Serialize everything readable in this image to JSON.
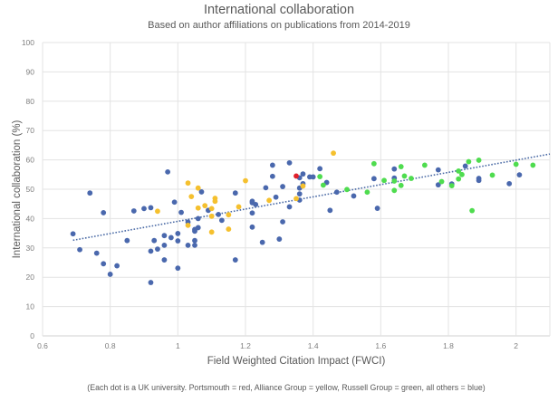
{
  "chart_data": {
    "type": "scatter",
    "title": "International collaboration",
    "subtitle": "Based on author affiliations on publications from 2014-2019",
    "xlabel": "Field Weighted Citation Impact (FWCI)",
    "ylabel": "International collaboration (%)",
    "note": "(Each dot is a UK university. Portsmouth = red, Alliance Group = yellow, Russell Group = green, all others = blue)",
    "xlim": [
      0.6,
      2.1
    ],
    "ylim": [
      0,
      100
    ],
    "x_ticks": [
      0.6,
      0.8,
      1.0,
      1.2,
      1.4,
      1.6,
      1.8,
      2.0
    ],
    "x_tick_labels": [
      "0.6",
      "0.8",
      "1",
      "1.2",
      "1.4",
      "1.6",
      "1.8",
      "2"
    ],
    "y_ticks": [
      0,
      10,
      20,
      30,
      40,
      50,
      60,
      70,
      80,
      90,
      100
    ],
    "y_tick_labels": [
      "0",
      "10",
      "20",
      "30",
      "40",
      "50",
      "60",
      "70",
      "80",
      "90",
      "100"
    ],
    "grid": true,
    "trendline": {
      "type": "linear",
      "style": "dotted",
      "x": [
        0.69,
        2.1
      ],
      "y": [
        32.6,
        62.0
      ],
      "color": "#4a6aa5"
    },
    "series": [
      {
        "name": "All others",
        "color": "#4a68ad",
        "points": [
          [
            0.69,
            34.8
          ],
          [
            0.71,
            29.4
          ],
          [
            0.74,
            48.7
          ],
          [
            0.76,
            28.2
          ],
          [
            0.78,
            42.0
          ],
          [
            0.78,
            24.6
          ],
          [
            0.8,
            21.0
          ],
          [
            0.82,
            23.9
          ],
          [
            0.85,
            32.5
          ],
          [
            0.87,
            42.6
          ],
          [
            0.9,
            43.4
          ],
          [
            0.92,
            43.7
          ],
          [
            0.92,
            28.9
          ],
          [
            0.92,
            18.2
          ],
          [
            0.93,
            32.5
          ],
          [
            0.94,
            29.6
          ],
          [
            0.96,
            34.2
          ],
          [
            0.96,
            30.9
          ],
          [
            0.96,
            25.9
          ],
          [
            0.97,
            55.9
          ],
          [
            0.98,
            33.5
          ],
          [
            0.99,
            45.6
          ],
          [
            1.0,
            34.9
          ],
          [
            1.0,
            32.4
          ],
          [
            1.0,
            23.1
          ],
          [
            1.01,
            42.1
          ],
          [
            1.03,
            38.8
          ],
          [
            1.03,
            30.9
          ],
          [
            1.05,
            36.3
          ],
          [
            1.05,
            35.7
          ],
          [
            1.05,
            32.5
          ],
          [
            1.05,
            30.9
          ],
          [
            1.06,
            40.0
          ],
          [
            1.06,
            36.9
          ],
          [
            1.07,
            49.1
          ],
          [
            1.09,
            42.8
          ],
          [
            1.12,
            41.4
          ],
          [
            1.13,
            39.4
          ],
          [
            1.17,
            48.7
          ],
          [
            1.17,
            25.9
          ],
          [
            1.22,
            45.9
          ],
          [
            1.22,
            45.4
          ],
          [
            1.23,
            44.8
          ],
          [
            1.22,
            41.9
          ],
          [
            1.22,
            37.1
          ],
          [
            1.25,
            31.9
          ],
          [
            1.26,
            50.5
          ],
          [
            1.28,
            54.4
          ],
          [
            1.28,
            58.2
          ],
          [
            1.29,
            47.3
          ],
          [
            1.3,
            33.0
          ],
          [
            1.31,
            38.9
          ],
          [
            1.31,
            50.9
          ],
          [
            1.33,
            59.0
          ],
          [
            1.33,
            44.0
          ],
          [
            1.36,
            50.4
          ],
          [
            1.36,
            48.4
          ],
          [
            1.36,
            46.3
          ],
          [
            1.36,
            53.9
          ],
          [
            1.37,
            55.2
          ],
          [
            1.37,
            51.9
          ],
          [
            1.39,
            54.2
          ],
          [
            1.4,
            54.2
          ],
          [
            1.42,
            57.0
          ],
          [
            1.44,
            52.3
          ],
          [
            1.45,
            42.8
          ],
          [
            1.47,
            49.0
          ],
          [
            1.52,
            47.7
          ],
          [
            1.58,
            53.6
          ],
          [
            1.59,
            43.5
          ],
          [
            1.64,
            56.9
          ],
          [
            1.64,
            53.8
          ],
          [
            1.77,
            56.6
          ],
          [
            1.77,
            51.5
          ],
          [
            1.81,
            51.8
          ],
          [
            1.85,
            57.9
          ],
          [
            1.89,
            53.7
          ],
          [
            1.89,
            53.0
          ],
          [
            1.98,
            51.9
          ],
          [
            2.01,
            54.9
          ]
        ]
      },
      {
        "name": "Alliance Group",
        "color": "#f5c02e",
        "points": [
          [
            0.94,
            42.5
          ],
          [
            1.03,
            52.1
          ],
          [
            1.06,
            50.4
          ],
          [
            1.04,
            47.5
          ],
          [
            1.11,
            46.9
          ],
          [
            1.11,
            45.9
          ],
          [
            1.2,
            52.9
          ],
          [
            1.08,
            44.4
          ],
          [
            1.06,
            43.6
          ],
          [
            1.1,
            43.4
          ],
          [
            1.18,
            44.0
          ],
          [
            1.27,
            46.2
          ],
          [
            1.1,
            40.8
          ],
          [
            1.15,
            41.3
          ],
          [
            1.03,
            37.7
          ],
          [
            1.15,
            36.4
          ],
          [
            1.1,
            35.4
          ],
          [
            1.37,
            51.1
          ],
          [
            1.35,
            46.8
          ],
          [
            1.46,
            62.3
          ]
        ]
      },
      {
        "name": "Russell Group",
        "color": "#4fdc4f",
        "points": [
          [
            1.42,
            54.3
          ],
          [
            1.43,
            51.4
          ],
          [
            1.5,
            49.9
          ],
          [
            1.56,
            49.0
          ],
          [
            1.58,
            58.7
          ],
          [
            1.61,
            53.0
          ],
          [
            1.64,
            52.8
          ],
          [
            1.64,
            49.6
          ],
          [
            1.66,
            57.7
          ],
          [
            1.66,
            51.3
          ],
          [
            1.67,
            54.5
          ],
          [
            1.69,
            53.7
          ],
          [
            1.73,
            58.2
          ],
          [
            1.78,
            52.6
          ],
          [
            1.81,
            51.2
          ],
          [
            1.83,
            56.2
          ],
          [
            1.83,
            53.5
          ],
          [
            1.84,
            55.0
          ],
          [
            1.86,
            59.4
          ],
          [
            1.87,
            42.7
          ],
          [
            1.89,
            59.9
          ],
          [
            1.93,
            54.8
          ],
          [
            2.0,
            58.5
          ],
          [
            2.05,
            58.2
          ]
        ]
      },
      {
        "name": "Portsmouth",
        "color": "#e0202a",
        "points": [
          [
            1.35,
            54.5
          ]
        ]
      }
    ]
  }
}
